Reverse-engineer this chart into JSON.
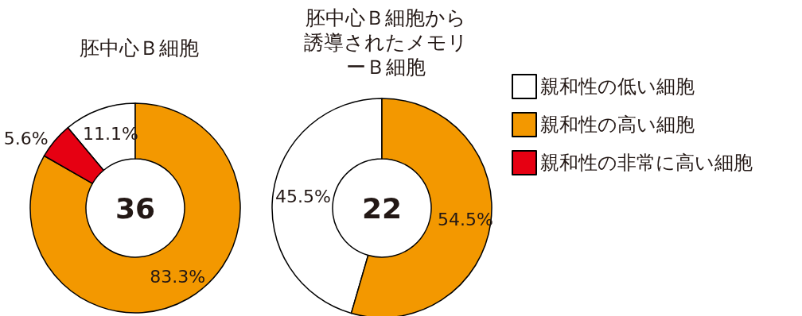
{
  "chart_data": [
    {
      "type": "donut",
      "title": "胚中心Ｂ細胞",
      "categories": [
        "親和性の低い細胞",
        "親和性の高い細胞",
        "親和性の非常に高い細胞"
      ],
      "values": [
        11.1,
        83.3,
        5.6
      ],
      "colors": [
        "#ffffff",
        "#f39800",
        "#e60012"
      ],
      "value_labels": [
        "11.1%",
        "83.3%",
        "5.6%"
      ],
      "annotations": [
        "36"
      ],
      "legend": "right"
    },
    {
      "type": "donut",
      "title": "胚中心Ｂ細胞から誘導されたメモリーＢ細胞",
      "categories": [
        null,
        null
      ],
      "values": [
        45.5,
        54.5
      ],
      "colors": [
        "#ffffff",
        "#f39800"
      ],
      "value_labels": [
        "45.5%",
        "54.5%"
      ],
      "annotations": [
        "22"
      ]
    }
  ]
}
